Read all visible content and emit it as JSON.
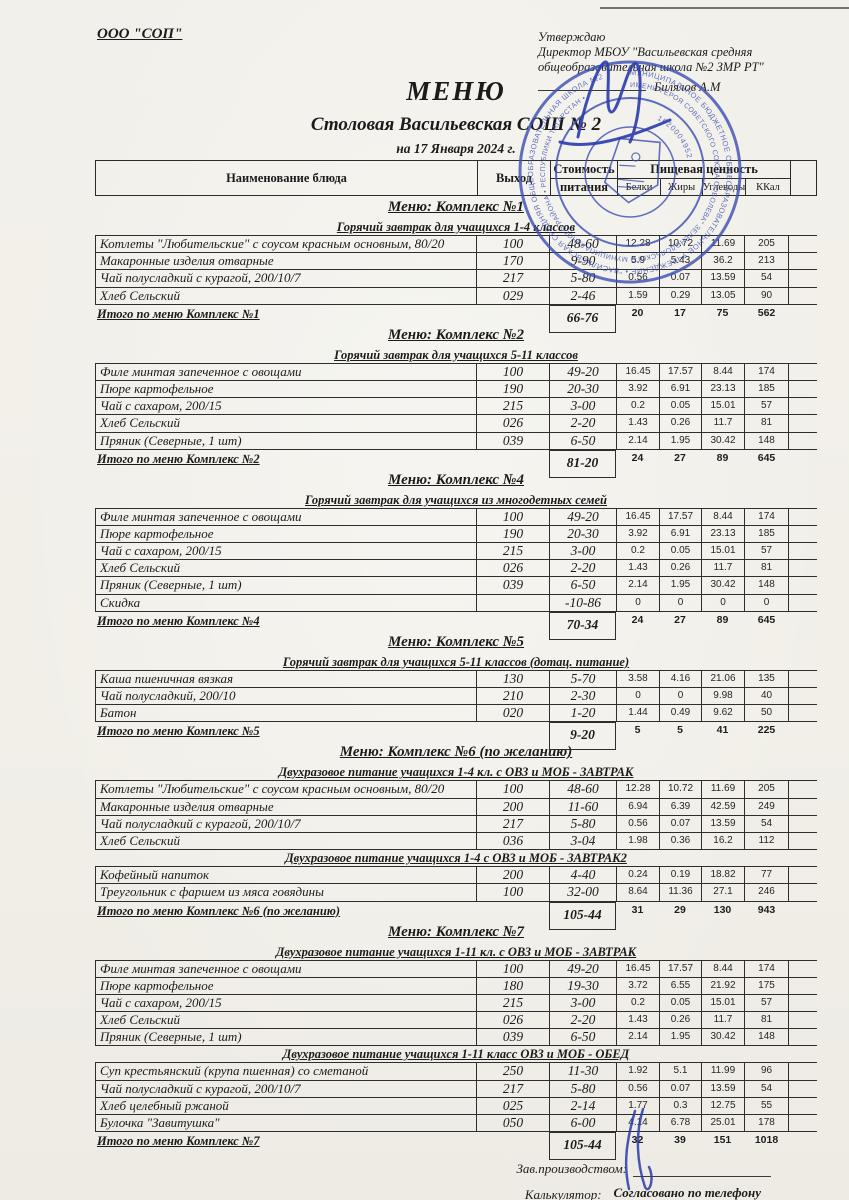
{
  "page": {
    "org": "ООО \"СОП\"",
    "approve_line1": "Утверждаю",
    "approve_line2": "Директор МБОУ \"Васильевская средняя",
    "approve_line3": "общеобразовательная школа  №2  ЗМР РТ\"",
    "approve_signer": "Билялов А.М",
    "title": "МЕНЮ",
    "subtitle": "Столовая Васильевская  СОШ  № 2",
    "date_line": "на 17 Января 2024 г."
  },
  "table_header": {
    "dish": "Наименование блюда",
    "portion": "Выход",
    "cost1": "Стоимость",
    "cost2": "питания",
    "nutrition": "Пищевая ценность",
    "protein": "Белки",
    "fat": "Жиры",
    "carbs": "Углеводы",
    "kcal": "ККал"
  },
  "sections": [
    {
      "title": "Меню: Комплекс №1",
      "groups": [
        {
          "subtitle": "Горячий завтрак для учащихся 1-4 классов",
          "rows": [
            [
              "Котлеты  \"Любительские\" с соусом красным основным, 80/20",
              "100",
              "48-60",
              "12.28",
              "10.72",
              "11.69",
              "205"
            ],
            [
              "Макаронные изделия отварные",
              "170",
              "9-90",
              "5.9",
              "5.43",
              "36.2",
              "213"
            ],
            [
              "Чай полусладкий с курагой, 200/10/7",
              "217",
              "5-80",
              "0.56",
              "0.07",
              "13.59",
              "54"
            ],
            [
              "Хлеб Сельский",
              "029",
              "2-46",
              "1.59",
              "0.29",
              "13.05",
              "90"
            ]
          ]
        }
      ],
      "total": {
        "label": "Итого по меню Комплекс №1",
        "cost": "66-76",
        "values": [
          "20",
          "17",
          "75",
          "562"
        ]
      }
    },
    {
      "title": "Меню: Комплекс №2",
      "groups": [
        {
          "subtitle": "Горячий завтрак для учащихся 5-11 классов",
          "rows": [
            [
              "Филе минтая запеченное с овощами",
              "100",
              "49-20",
              "16.45",
              "17.57",
              "8.44",
              "174"
            ],
            [
              "Пюре картофельное",
              "190",
              "20-30",
              "3.92",
              "6.91",
              "23.13",
              "185"
            ],
            [
              "Чай с сахаром, 200/15",
              "215",
              "3-00",
              "0.2",
              "0.05",
              "15.01",
              "57"
            ],
            [
              "Хлеб Сельский",
              "026",
              "2-20",
              "1.43",
              "0.26",
              "11.7",
              "81"
            ],
            [
              "Пряник (Северные, 1 шт)",
              "039",
              "6-50",
              "2.14",
              "1.95",
              "30.42",
              "148"
            ]
          ]
        }
      ],
      "total": {
        "label": "Итого по меню Комплекс №2",
        "cost": "81-20",
        "values": [
          "24",
          "27",
          "89",
          "645"
        ]
      }
    },
    {
      "title": "Меню: Комплекс №4",
      "groups": [
        {
          "subtitle": "Горячий завтрак для учащихся из многодетных семей",
          "rows": [
            [
              "Филе минтая запеченное с овощами",
              "100",
              "49-20",
              "16.45",
              "17.57",
              "8.44",
              "174"
            ],
            [
              "Пюре картофельное",
              "190",
              "20-30",
              "3.92",
              "6.91",
              "23.13",
              "185"
            ],
            [
              "Чай с сахаром, 200/15",
              "215",
              "3-00",
              "0.2",
              "0.05",
              "15.01",
              "57"
            ],
            [
              "Хлеб Сельский",
              "026",
              "2-20",
              "1.43",
              "0.26",
              "11.7",
              "81"
            ],
            [
              "Пряник (Северные, 1 шт)",
              "039",
              "6-50",
              "2.14",
              "1.95",
              "30.42",
              "148"
            ],
            [
              "Скидка",
              "",
              "-10-86",
              "0",
              "0",
              "0",
              "0"
            ]
          ]
        }
      ],
      "total": {
        "label": "Итого по меню Комплекс №4",
        "cost": "70-34",
        "values": [
          "24",
          "27",
          "89",
          "645"
        ]
      }
    },
    {
      "title": "Меню: Комплекс №5",
      "groups": [
        {
          "subtitle": "Горячий завтрак для учащихся 5-11 классов (дотац. питание)",
          "rows": [
            [
              "Каша пшеничная вязкая",
              "130",
              "5-70",
              "3.58",
              "4.16",
              "21.06",
              "135"
            ],
            [
              "Чай полусладкий, 200/10",
              "210",
              "2-30",
              "0",
              "0",
              "9.98",
              "40"
            ],
            [
              "Батон",
              "020",
              "1-20",
              "1.44",
              "0.49",
              "9.62",
              "50"
            ]
          ]
        }
      ],
      "total": {
        "label": "Итого по меню Комплекс №5",
        "cost": "9-20",
        "values": [
          "5",
          "5",
          "41",
          "225"
        ]
      }
    },
    {
      "title": "Меню: Комплекс №6 (по желанию)",
      "groups": [
        {
          "subtitle": "Двухразовое питание учащихся 1-4 кл. с ОВЗ и МОБ - ЗАВТРАК",
          "rows": [
            [
              "Котлеты  \"Любительские\" с соусом красным основным, 80/20",
              "100",
              "48-60",
              "12.28",
              "10.72",
              "11.69",
              "205"
            ],
            [
              "Макаронные изделия отварные",
              "200",
              "11-60",
              "6.94",
              "6.39",
              "42.59",
              "249"
            ],
            [
              "Чай полусладкий с курагой, 200/10/7",
              "217",
              "5-80",
              "0.56",
              "0.07",
              "13.59",
              "54"
            ],
            [
              "Хлеб Сельский",
              "036",
              "3-04",
              "1.98",
              "0.36",
              "16.2",
              "112"
            ]
          ]
        },
        {
          "subtitle": "Двухразовое питание учащихся 1-4 с ОВЗ и МОБ - ЗАВТРАК2",
          "rows": [
            [
              "Кофейный напиток",
              "200",
              "4-40",
              "0.24",
              "0.19",
              "18.82",
              "77"
            ],
            [
              "Треугольник с фаршем  из мяса говядины",
              "100",
              "32-00",
              "8.64",
              "11.36",
              "27.1",
              "246"
            ]
          ]
        }
      ],
      "total": {
        "label": "Итого по меню Комплекс №6 (по желанию)",
        "cost": "105-44",
        "values": [
          "31",
          "29",
          "130",
          "943"
        ]
      }
    },
    {
      "title": "Меню: Комплекс №7",
      "groups": [
        {
          "subtitle": "Двухразовое питание учащихся 1-11 кл. с  ОВЗ и МОБ - ЗАВТРАК",
          "rows": [
            [
              "Филе минтая запеченное с овощами",
              "100",
              "49-20",
              "16.45",
              "17.57",
              "8.44",
              "174"
            ],
            [
              "Пюре картофельное",
              "180",
              "19-30",
              "3.72",
              "6.55",
              "21.92",
              "175"
            ],
            [
              "Чай с сахаром, 200/15",
              "215",
              "3-00",
              "0.2",
              "0.05",
              "15.01",
              "57"
            ],
            [
              "Хлеб Сельский",
              "026",
              "2-20",
              "1.43",
              "0.26",
              "11.7",
              "81"
            ],
            [
              "Пряник (Северные, 1 шт)",
              "039",
              "6-50",
              "2.14",
              "1.95",
              "30.42",
              "148"
            ]
          ]
        },
        {
          "subtitle": "Двухразовое питание учащихся 1-11 класс ОВЗ и МОБ - ОБЕД",
          "rows": [
            [
              "Суп крестьянский (крупа пшенная) со сметаной",
              "250",
              "11-30",
              "1.92",
              "5.1",
              "11.99",
              "96"
            ],
            [
              "Чай полусладкий с курагой, 200/10/7",
              "217",
              "5-80",
              "0.56",
              "0.07",
              "13.59",
              "54"
            ],
            [
              "Хлеб  целебный ржаной",
              "025",
              "2-14",
              "1.77",
              "0.3",
              "12.75",
              "55"
            ],
            [
              "Булочка \"Завитушка\"",
              "050",
              "6-00",
              "4.14",
              "6.78",
              "25.01",
              "178"
            ]
          ]
        }
      ],
      "total": {
        "label": "Итого по меню Комплекс №7",
        "cost": "105-44",
        "values": [
          "32",
          "39",
          "151",
          "1018"
        ]
      }
    }
  ],
  "footer": {
    "manager_label": "Зав.производством:",
    "calculator_label": "Калькулятор:",
    "calculator_value": "Согласовано по телефону"
  },
  "stamp": {
    "outer_text": "МУНИЦИПАЛЬНОЕ БЮДЖЕТНОЕ ОБЩЕОБРАЗОВАТЕЛЬНОЕ УЧРЕЖДЕНИЕ • \"ВАСИЛЬЕВСКАЯ СРЕДНЯЯ ОБЩЕОБРАЗОВАТЕЛЬНАЯ ШКОЛА №2",
    "middle_text": "ИМЕНИ ГЕРОЯ СОВЕТСКОГО СОЮЗА СОБОЛЕВА\" ЗЕЛЕНОДОЛЬСКОГО МУНИЦИПАЛЬНОГО РАЙОНА • РЕСПУБЛИКИ ТАТАРСТАН •",
    "inner_number": "1620004952",
    "color": "#3f51b5"
  }
}
